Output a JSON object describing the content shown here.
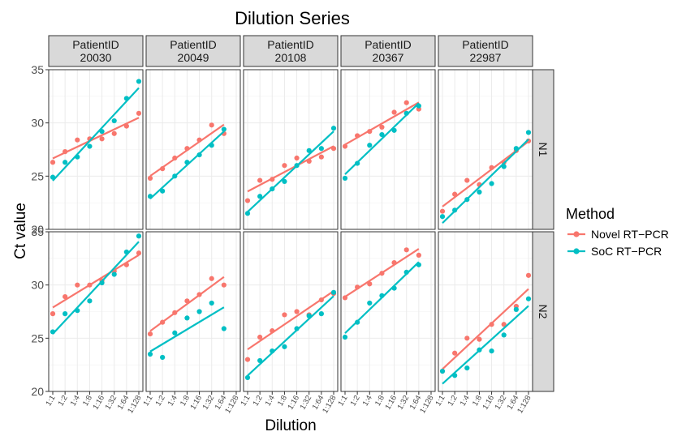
{
  "colors": {
    "novel": "#F8766D",
    "soc": "#00BFC4",
    "strip_fill": "#D9D9D9",
    "grid": "#EBEBEB"
  },
  "chart_data": {
    "type": "scatter",
    "title": "Dilution Series",
    "xlabel": "Dilution",
    "ylabel": "Ct value",
    "ylim": [
      20,
      35
    ],
    "yticks": [
      "20",
      "25",
      "30",
      "35"
    ],
    "categories": [
      "1:1",
      "1:2",
      "1:4",
      "1:8",
      "1:16",
      "1:32",
      "1:64",
      "1:128"
    ],
    "facet_col_label": "PatientID",
    "patients": [
      "20030",
      "20049",
      "20108",
      "20367",
      "22987"
    ],
    "targets": [
      "N1",
      "N2"
    ],
    "legend": {
      "title": "Method",
      "position": "right",
      "entries": [
        {
          "name": "Novel RT−PCR",
          "key": "novel"
        },
        {
          "name": "SoC RT−PCR",
          "key": "soc"
        }
      ]
    },
    "grid": true,
    "trend_lines": "linear fit per method",
    "panels": [
      {
        "patient": "20030",
        "target": "N1",
        "novel": [
          26.3,
          27.3,
          28.4,
          28.5,
          28.5,
          29.0,
          29.7,
          30.9
        ],
        "soc": [
          24.9,
          26.3,
          26.8,
          27.8,
          29.2,
          30.2,
          32.3,
          33.9
        ]
      },
      {
        "patient": "20049",
        "target": "N1",
        "novel": [
          24.8,
          25.7,
          26.7,
          27.6,
          28.4,
          29.8,
          29.0,
          null
        ],
        "soc": [
          23.1,
          23.6,
          25.0,
          26.3,
          27.0,
          27.9,
          29.4,
          null
        ]
      },
      {
        "patient": "20108",
        "target": "N1",
        "novel": [
          22.7,
          24.6,
          24.7,
          26.0,
          26.7,
          26.4,
          26.8,
          27.6
        ],
        "soc": [
          21.5,
          23.1,
          23.8,
          24.5,
          26.0,
          27.4,
          27.6,
          29.5
        ]
      },
      {
        "patient": "20367",
        "target": "N1",
        "novel": [
          27.8,
          28.8,
          29.2,
          29.6,
          31.0,
          31.9,
          31.3,
          null
        ],
        "soc": [
          24.8,
          26.2,
          27.9,
          28.9,
          29.3,
          30.9,
          31.6,
          null
        ]
      },
      {
        "patient": "22987",
        "target": "N1",
        "novel": [
          21.7,
          23.3,
          24.6,
          24.2,
          25.8,
          26.3,
          27.4,
          28.3
        ],
        "soc": [
          21.2,
          21.8,
          22.8,
          23.5,
          24.3,
          25.9,
          27.6,
          29.1
        ]
      },
      {
        "patient": "20030",
        "target": "N2",
        "novel": [
          27.3,
          28.9,
          30.0,
          30.0,
          30.4,
          31.3,
          31.9,
          33.0
        ],
        "soc": [
          25.6,
          27.3,
          27.6,
          28.5,
          30.2,
          31.0,
          33.1,
          34.6
        ]
      },
      {
        "patient": "20049",
        "target": "N2",
        "novel": [
          25.4,
          26.5,
          27.4,
          28.5,
          29.1,
          30.6,
          30.0,
          null
        ],
        "soc": [
          23.5,
          23.2,
          25.5,
          26.9,
          27.5,
          28.3,
          25.9,
          null
        ]
      },
      {
        "patient": "20108",
        "target": "N2",
        "novel": [
          23.0,
          25.1,
          25.7,
          27.2,
          27.5,
          27.2,
          28.6,
          29.2
        ],
        "soc": [
          21.3,
          22.9,
          23.8,
          24.2,
          25.9,
          27.1,
          27.3,
          29.3
        ]
      },
      {
        "patient": "20367",
        "target": "N2",
        "novel": [
          28.8,
          29.8,
          30.1,
          31.1,
          32.1,
          33.3,
          32.8,
          null
        ],
        "soc": [
          25.1,
          26.5,
          28.3,
          29.0,
          29.7,
          31.2,
          31.9,
          null
        ]
      },
      {
        "patient": "22987",
        "target": "N2",
        "novel": [
          21.9,
          23.6,
          25.0,
          24.9,
          26.3,
          26.3,
          28.0,
          30.9
        ],
        "soc": [
          21.9,
          21.5,
          22.2,
          23.9,
          23.8,
          25.3,
          27.7,
          28.7
        ]
      }
    ]
  }
}
